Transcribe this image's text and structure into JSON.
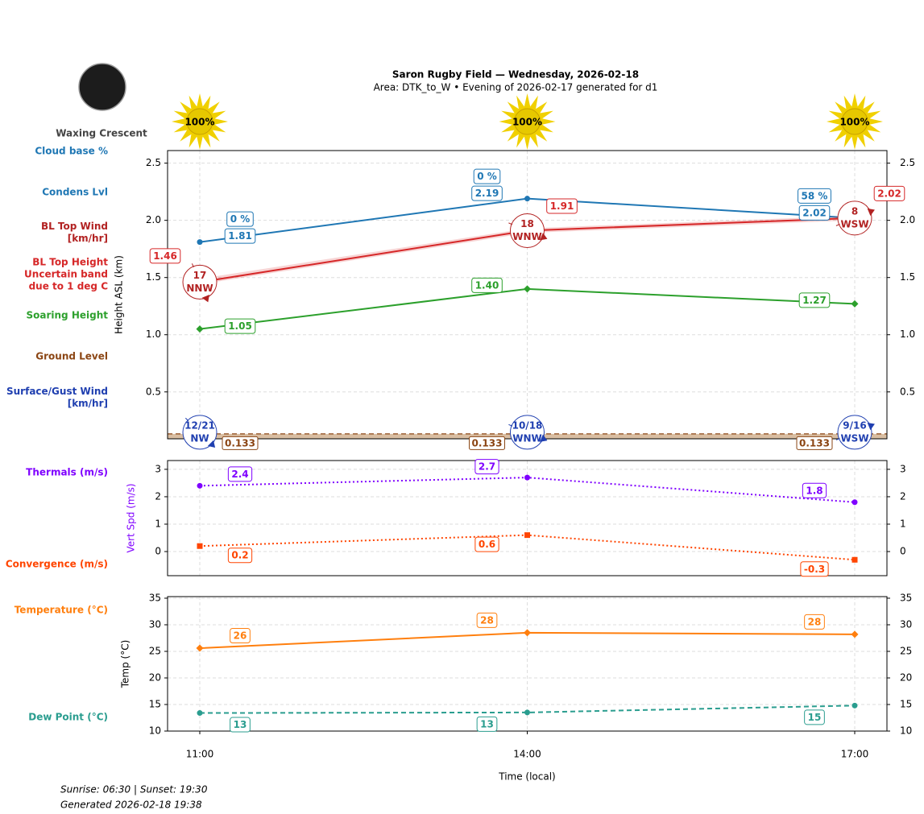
{
  "chart_data": [
    {
      "type": "line",
      "title": "Saron Rugby Field — Wednesday, 2026-02-18",
      "subtitle": "Area: DTK_to_W • Evening of 2026-02-17 generated for d1",
      "moon_phase": "Waxing Crescent",
      "sun": {
        "values": [
          100,
          100,
          100
        ],
        "value_labels": [
          "100%",
          "100%",
          "100%"
        ]
      },
      "ylabel": "Height ASL (km)",
      "ylim": [
        0.09,
        2.61
      ],
      "yticks": [
        0.5,
        {
          "value": 1,
          "label": "1.0"
        },
        1.5,
        {
          "value": 2,
          "label": "2.0"
        },
        2.5
      ],
      "grid": true,
      "series": [
        {
          "name": "Cloud base %",
          "style": "percent-labels",
          "color": "#1f77b4",
          "values": [
            0,
            0,
            58
          ],
          "value_labels": [
            "0 %",
            "0 %",
            "58 %"
          ]
        },
        {
          "name": "Condens Lvl",
          "style": "line",
          "color": "#1f77b4",
          "dash": "solid",
          "marker": "circle",
          "values": [
            1.81,
            2.19,
            2.02
          ]
        },
        {
          "name": "BL Top Wind\n[km/hr]",
          "style": "wind",
          "color": "#b22222",
          "values": [
            17,
            18,
            8
          ],
          "directions": [
            "NNW",
            "WNW",
            "WSW"
          ],
          "bearings": [
            337.5,
            292.5,
            247.5
          ]
        },
        {
          "name": "BL Top Height\nUncertain band\ndue to 1 deg C",
          "style": "band-line",
          "color": "#d62728",
          "dash": "solid",
          "marker": "none",
          "values": [
            1.46,
            1.91,
            2.02
          ],
          "lower": [
            1.44,
            1.89,
            2.0
          ],
          "upper": [
            1.49,
            1.93,
            2.04
          ]
        },
        {
          "name": "Soaring Height",
          "style": "line",
          "color": "#2ca02c",
          "dash": "solid",
          "marker": "diamond",
          "values": [
            1.05,
            1.4,
            1.27
          ],
          "value_labels": [
            "1.05",
            "1.40",
            "1.27"
          ]
        },
        {
          "name": "Ground Level",
          "style": "ground",
          "color": "#8b4513",
          "values": [
            0.133,
            0.133,
            0.133
          ]
        },
        {
          "name": "Surface/Gust Wind\n[km/hr]",
          "style": "wind",
          "color": "#1f3fb0",
          "values": [
            12,
            10,
            9
          ],
          "gust": [
            21,
            18,
            16
          ],
          "value_labels": [
            "12/21",
            "10/18",
            "9/16"
          ],
          "directions": [
            "NW",
            "WNW",
            "WSW"
          ],
          "bearings": [
            315,
            292.5,
            247.5
          ]
        }
      ]
    },
    {
      "type": "line",
      "ylabel": "Vert Spd (m/s)",
      "ylabel_color": "#7f00ff",
      "ylim": [
        -0.88,
        3.32
      ],
      "yticks": [
        0,
        1,
        2,
        3
      ],
      "grid": true,
      "series": [
        {
          "name": "Thermals (m/s)",
          "style": "line",
          "color": "#7f00ff",
          "dash": "dotted",
          "marker": "circle",
          "values": [
            2.4,
            2.7,
            1.8
          ]
        },
        {
          "name": "Convergence (m/s)",
          "style": "line",
          "color": "#ff4500",
          "dash": "dotted",
          "marker": "square",
          "values": [
            0.2,
            0.6,
            -0.3
          ]
        }
      ]
    },
    {
      "type": "line",
      "ylabel": "Temp (°C)",
      "ylim": [
        10,
        35.3
      ],
      "yticks": [
        10,
        15,
        20,
        25,
        30,
        35
      ],
      "grid": true,
      "categories": [
        "11:00",
        "14:00",
        "17:00"
      ],
      "xlabel": "Time (local)",
      "series": [
        {
          "name": "Temperature (°C)",
          "style": "line",
          "color": "#ff7f0e",
          "dash": "solid",
          "marker": "diamond",
          "values": [
            25.6,
            28.5,
            28.2
          ],
          "value_labels": [
            "26",
            "28",
            "28"
          ]
        },
        {
          "name": "Dew Point (°C)",
          "style": "line",
          "color": "#2a9d8f",
          "dash": "dashed",
          "marker": "circle",
          "values": [
            13.4,
            13.5,
            14.8
          ],
          "value_labels": [
            "13",
            "13",
            "15"
          ]
        }
      ]
    }
  ],
  "footer": {
    "sun_times": "Sunrise: 06:30 | Sunset: 19:30",
    "generated": "Generated 2026-02-18 19:38"
  }
}
